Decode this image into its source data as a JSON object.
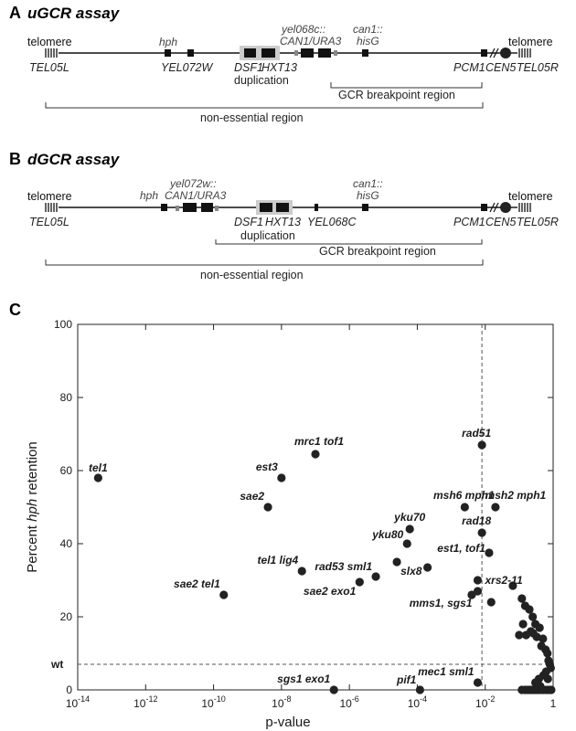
{
  "panel_a": {
    "letter": "A",
    "title": "uGCR assay",
    "labels": {
      "telomere_left": "telomere",
      "telomere_right": "telomere",
      "hph": "hph",
      "yel068c_1": "yel068c::",
      "yel068c_2": "CAN1/URA3",
      "can1_1": "can1::",
      "can1_2": "hisG",
      "tel05l": "TEL05L",
      "yel072w": "YEL072W",
      "dsf1": "DSF1",
      "hxt13": "HXT13",
      "pcm1": "PCM1",
      "cen5": "CEN5",
      "tel05r": "TEL05R",
      "duplication": "duplication",
      "gcr_region": "GCR breakpoint region",
      "nonessential": "non-essential region"
    }
  },
  "panel_b": {
    "letter": "B",
    "title": "dGCR assay",
    "labels": {
      "telomere_left": "telomere",
      "telomere_right": "telomere",
      "yel072w_1": "yel072w::",
      "yel072w_2": "CAN1/URA3",
      "hph": "hph",
      "can1_1": "can1::",
      "can1_2": "hisG",
      "tel05l": "TEL05L",
      "dsf1": "DSF1",
      "hxt13": "HXT13",
      "yel068c": "YEL068C",
      "pcm1": "PCM1",
      "cen5": "CEN5",
      "tel05r": "TEL05R",
      "duplication": "duplication",
      "gcr_region": "GCR breakpoint region",
      "nonessential": "non-essential region"
    }
  },
  "panel_c": {
    "letter": "C"
  },
  "chart_data": {
    "type": "scatter",
    "xlabel": "p-value",
    "ylabel_pre": "Percent ",
    "ylabel_italic": "hph",
    "ylabel_post": " retention",
    "x_scale": "log",
    "xlim": [
      1e-14,
      1
    ],
    "ylim": [
      0,
      100
    ],
    "x_ticks": [
      {
        "value": 1e-14,
        "base": "10",
        "exp": "-14"
      },
      {
        "value": 1e-12,
        "base": "10",
        "exp": "-12"
      },
      {
        "value": 1e-10,
        "base": "10",
        "exp": "-10"
      },
      {
        "value": 1e-08,
        "base": "10",
        "exp": "-8"
      },
      {
        "value": 1e-06,
        "base": "10",
        "exp": "-6"
      },
      {
        "value": 0.0001,
        "base": "10",
        "exp": "-4"
      },
      {
        "value": 0.01,
        "base": "10",
        "exp": "-2"
      },
      {
        "value": 1,
        "base": "1",
        "exp": ""
      }
    ],
    "y_ticks": [
      0,
      20,
      40,
      60,
      80,
      100
    ],
    "reference_lines": {
      "wt_y": 7,
      "wt_label": "wt",
      "p_threshold": 0.008
    },
    "point_color": "#222222",
    "labeled_points": [
      {
        "x": 4e-14,
        "y": 58,
        "label": "tel1"
      },
      {
        "x": 2e-10,
        "y": 26,
        "label": "sae2 tel1"
      },
      {
        "x": 4e-09,
        "y": 50,
        "label": "sae2"
      },
      {
        "x": 1e-08,
        "y": 58,
        "label": "est3"
      },
      {
        "x": 4e-08,
        "y": 32.5,
        "label": "tel1 lig4"
      },
      {
        "x": 3.5e-07,
        "y": 0,
        "label": "sgs1 exo1"
      },
      {
        "x": 2e-06,
        "y": 29.5,
        "label": "sae2 exo1"
      },
      {
        "x": 6e-06,
        "y": 31,
        "label": "rad53 sml1"
      },
      {
        "x": 2.5e-05,
        "y": 35,
        "label": "slx8"
      },
      {
        "x": 5e-05,
        "y": 40,
        "label": "yku80"
      },
      {
        "x": 6e-05,
        "y": 44,
        "label": "yku70"
      },
      {
        "x": 0.00012,
        "y": 0,
        "label": "pif1"
      },
      {
        "x": 0.0025,
        "y": 50,
        "label": "msh6 mph1"
      },
      {
        "x": 0.008,
        "y": 67,
        "label": "rad51"
      },
      {
        "x": 0.02,
        "y": 50,
        "label": "msh2 mph1"
      },
      {
        "x": 0.008,
        "y": 43,
        "label": "rad18"
      },
      {
        "x": 0.013,
        "y": 37.5,
        "label": "est1, tof1"
      },
      {
        "x": 0.006,
        "y": 2,
        "label": "mec1 sml1"
      },
      {
        "x": 0.006,
        "y": 30,
        "label": "xrs2-11"
      },
      {
        "x": 0.006,
        "y": 27,
        "label": "mms1, sgs1"
      }
    ],
    "extra_points": [
      {
        "x": 1e-07,
        "y": 64.5
      },
      {
        "x": 0.0002,
        "y": 33.5
      },
      {
        "x": 0.004,
        "y": 26
      },
      {
        "x": 0.015,
        "y": 24
      },
      {
        "x": 0.065,
        "y": 28.5
      },
      {
        "x": 0.12,
        "y": 25
      },
      {
        "x": 0.15,
        "y": 23
      },
      {
        "x": 0.2,
        "y": 22
      },
      {
        "x": 0.25,
        "y": 20
      },
      {
        "x": 0.13,
        "y": 18
      },
      {
        "x": 0.3,
        "y": 18
      },
      {
        "x": 0.4,
        "y": 17
      },
      {
        "x": 0.22,
        "y": 16
      },
      {
        "x": 0.16,
        "y": 15
      },
      {
        "x": 0.1,
        "y": 15
      },
      {
        "x": 0.26,
        "y": 15.5
      },
      {
        "x": 0.33,
        "y": 14.5
      },
      {
        "x": 0.5,
        "y": 14
      },
      {
        "x": 0.45,
        "y": 12
      },
      {
        "x": 0.6,
        "y": 11
      },
      {
        "x": 0.68,
        "y": 10
      },
      {
        "x": 0.73,
        "y": 8
      },
      {
        "x": 0.8,
        "y": 7
      },
      {
        "x": 0.85,
        "y": 6
      },
      {
        "x": 0.62,
        "y": 5
      },
      {
        "x": 0.52,
        "y": 4
      },
      {
        "x": 0.7,
        "y": 3
      },
      {
        "x": 0.38,
        "y": 3
      },
      {
        "x": 0.42,
        "y": 1
      },
      {
        "x": 0.3,
        "y": 2
      },
      {
        "x": 0.12,
        "y": 0
      },
      {
        "x": 0.15,
        "y": 0
      },
      {
        "x": 0.18,
        "y": 0
      },
      {
        "x": 0.21,
        "y": 0
      },
      {
        "x": 0.24,
        "y": 0
      },
      {
        "x": 0.28,
        "y": 0
      },
      {
        "x": 0.33,
        "y": 0
      },
      {
        "x": 0.4,
        "y": 0
      },
      {
        "x": 0.5,
        "y": 0
      },
      {
        "x": 0.62,
        "y": 0
      },
      {
        "x": 0.75,
        "y": 0
      },
      {
        "x": 0.88,
        "y": 0
      }
    ]
  }
}
